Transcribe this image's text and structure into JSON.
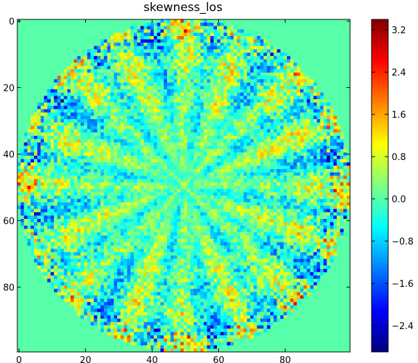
{
  "chart_data": {
    "type": "heatmap",
    "title": "skewness_los",
    "xlabel": "",
    "ylabel": "",
    "x_range": [
      0,
      99
    ],
    "y_range": [
      0,
      99
    ],
    "y_inverted": true,
    "x_ticks": [
      "0",
      "20",
      "40",
      "60",
      "80"
    ],
    "x_tick_values": [
      0,
      20,
      40,
      60,
      80
    ],
    "y_ticks": [
      "0",
      "20",
      "40",
      "60",
      "80"
    ],
    "y_tick_values": [
      0,
      20,
      40,
      60,
      80
    ],
    "colormap": "jet",
    "value_range": [
      -2.9,
      3.4
    ],
    "background_value": 0.0,
    "colorbar_ticks": [
      "−2.4",
      "−1.6",
      "−0.8",
      "0.0",
      "0.8",
      "1.6",
      "2.4",
      "3.2"
    ],
    "colorbar_tick_values": [
      -2.4,
      -1.6,
      -0.8,
      0.0,
      0.8,
      1.6,
      2.4,
      3.2
    ],
    "pattern": {
      "shape": "disk",
      "center": [
        50,
        50
      ],
      "radius": 50,
      "symmetry": "petal pattern of about 16 radial lobes alternating positive (yellow) and negative (blue) skewness, strongest near the rim"
    }
  }
}
